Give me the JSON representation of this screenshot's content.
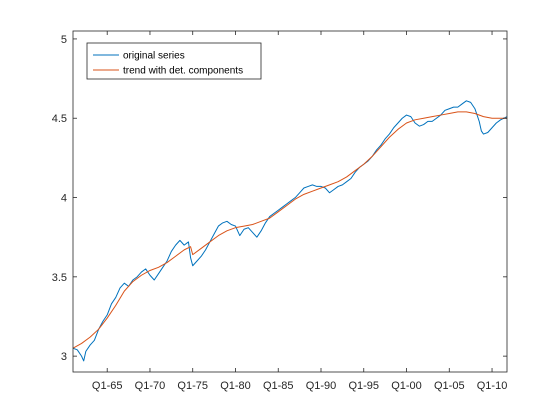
{
  "chart_data": {
    "type": "line",
    "title": "",
    "xlabel": "",
    "ylabel": "",
    "xlim": [
      1961.0,
      2011.75
    ],
    "ylim": [
      2.9,
      5.05
    ],
    "x_ticks": [
      {
        "value": 1965.0,
        "label": "Q1-65"
      },
      {
        "value": 1970.0,
        "label": "Q1-70"
      },
      {
        "value": 1975.0,
        "label": "Q1-75"
      },
      {
        "value": 1980.0,
        "label": "Q1-80"
      },
      {
        "value": 1985.0,
        "label": "Q1-85"
      },
      {
        "value": 1990.0,
        "label": "Q1-90"
      },
      {
        "value": 1995.0,
        "label": "Q1-95"
      },
      {
        "value": 2000.0,
        "label": "Q1-00"
      },
      {
        "value": 2005.0,
        "label": "Q1-05"
      },
      {
        "value": 2010.0,
        "label": "Q1-10"
      }
    ],
    "y_ticks": [
      {
        "value": 3,
        "label": "3"
      },
      {
        "value": 3.5,
        "label": "3.5"
      },
      {
        "value": 4,
        "label": "4"
      },
      {
        "value": 4.5,
        "label": "4.5"
      },
      {
        "value": 5,
        "label": "5"
      }
    ],
    "grid": false,
    "legend_position": "top-left",
    "series": [
      {
        "name": "original series",
        "color": "#0072BD",
        "points": [
          [
            1961.0,
            3.05
          ],
          [
            1961.5,
            3.04
          ],
          [
            1962.0,
            3.0
          ],
          [
            1962.25,
            2.97
          ],
          [
            1962.5,
            3.03
          ],
          [
            1963.0,
            3.07
          ],
          [
            1963.5,
            3.1
          ],
          [
            1964.0,
            3.17
          ],
          [
            1964.5,
            3.22
          ],
          [
            1965.0,
            3.26
          ],
          [
            1965.5,
            3.33
          ],
          [
            1966.0,
            3.37
          ],
          [
            1966.5,
            3.43
          ],
          [
            1967.0,
            3.46
          ],
          [
            1967.5,
            3.44
          ],
          [
            1968.0,
            3.48
          ],
          [
            1968.5,
            3.5
          ],
          [
            1969.0,
            3.53
          ],
          [
            1969.5,
            3.55
          ],
          [
            1970.0,
            3.51
          ],
          [
            1970.5,
            3.48
          ],
          [
            1971.0,
            3.52
          ],
          [
            1971.5,
            3.56
          ],
          [
            1972.0,
            3.6
          ],
          [
            1972.5,
            3.66
          ],
          [
            1973.0,
            3.7
          ],
          [
            1973.5,
            3.73
          ],
          [
            1974.0,
            3.7
          ],
          [
            1974.5,
            3.72
          ],
          [
            1974.75,
            3.62
          ],
          [
            1975.0,
            3.57
          ],
          [
            1975.5,
            3.6
          ],
          [
            1976.0,
            3.63
          ],
          [
            1976.5,
            3.67
          ],
          [
            1977.0,
            3.72
          ],
          [
            1977.5,
            3.77
          ],
          [
            1978.0,
            3.82
          ],
          [
            1978.5,
            3.84
          ],
          [
            1979.0,
            3.85
          ],
          [
            1979.5,
            3.83
          ],
          [
            1980.0,
            3.82
          ],
          [
            1980.5,
            3.76
          ],
          [
            1981.0,
            3.8
          ],
          [
            1981.5,
            3.81
          ],
          [
            1982.0,
            3.78
          ],
          [
            1982.5,
            3.75
          ],
          [
            1983.0,
            3.79
          ],
          [
            1983.5,
            3.84
          ],
          [
            1984.0,
            3.88
          ],
          [
            1984.5,
            3.9
          ],
          [
            1985.0,
            3.92
          ],
          [
            1985.5,
            3.94
          ],
          [
            1986.0,
            3.96
          ],
          [
            1986.5,
            3.98
          ],
          [
            1987.0,
            4.0
          ],
          [
            1987.5,
            4.03
          ],
          [
            1988.0,
            4.06
          ],
          [
            1988.5,
            4.07
          ],
          [
            1989.0,
            4.08
          ],
          [
            1989.5,
            4.07
          ],
          [
            1990.0,
            4.07
          ],
          [
            1990.5,
            4.06
          ],
          [
            1991.0,
            4.03
          ],
          [
            1991.5,
            4.05
          ],
          [
            1992.0,
            4.07
          ],
          [
            1992.5,
            4.08
          ],
          [
            1993.0,
            4.1
          ],
          [
            1993.5,
            4.12
          ],
          [
            1994.0,
            4.16
          ],
          [
            1994.5,
            4.19
          ],
          [
            1995.0,
            4.21
          ],
          [
            1995.5,
            4.23
          ],
          [
            1996.0,
            4.26
          ],
          [
            1996.5,
            4.3
          ],
          [
            1997.0,
            4.33
          ],
          [
            1997.5,
            4.37
          ],
          [
            1998.0,
            4.4
          ],
          [
            1998.5,
            4.44
          ],
          [
            1999.0,
            4.47
          ],
          [
            1999.5,
            4.5
          ],
          [
            2000.0,
            4.52
          ],
          [
            2000.5,
            4.51
          ],
          [
            2001.0,
            4.47
          ],
          [
            2001.5,
            4.45
          ],
          [
            2002.0,
            4.46
          ],
          [
            2002.5,
            4.48
          ],
          [
            2003.0,
            4.48
          ],
          [
            2003.5,
            4.5
          ],
          [
            2004.0,
            4.52
          ],
          [
            2004.5,
            4.55
          ],
          [
            2005.0,
            4.56
          ],
          [
            2005.5,
            4.57
          ],
          [
            2006.0,
            4.57
          ],
          [
            2006.5,
            4.59
          ],
          [
            2007.0,
            4.61
          ],
          [
            2007.5,
            4.6
          ],
          [
            2008.0,
            4.56
          ],
          [
            2008.5,
            4.48
          ],
          [
            2008.75,
            4.42
          ],
          [
            2009.0,
            4.4
          ],
          [
            2009.5,
            4.41
          ],
          [
            2010.0,
            4.44
          ],
          [
            2010.5,
            4.47
          ],
          [
            2011.0,
            4.49
          ],
          [
            2011.75,
            4.51
          ]
        ]
      },
      {
        "name": "trend with det. components",
        "color": "#D95319",
        "points": [
          [
            1961.0,
            3.05
          ],
          [
            1962.0,
            3.08
          ],
          [
            1963.0,
            3.12
          ],
          [
            1964.0,
            3.17
          ],
          [
            1965.0,
            3.24
          ],
          [
            1966.0,
            3.32
          ],
          [
            1967.0,
            3.41
          ],
          [
            1968.0,
            3.47
          ],
          [
            1969.0,
            3.51
          ],
          [
            1970.0,
            3.54
          ],
          [
            1971.0,
            3.56
          ],
          [
            1972.0,
            3.59
          ],
          [
            1973.0,
            3.63
          ],
          [
            1974.0,
            3.67
          ],
          [
            1974.75,
            3.69
          ],
          [
            1975.0,
            3.64
          ],
          [
            1976.0,
            3.68
          ],
          [
            1977.0,
            3.72
          ],
          [
            1978.0,
            3.76
          ],
          [
            1979.0,
            3.79
          ],
          [
            1980.0,
            3.81
          ],
          [
            1981.0,
            3.82
          ],
          [
            1982.0,
            3.83
          ],
          [
            1983.0,
            3.85
          ],
          [
            1984.0,
            3.87
          ],
          [
            1985.0,
            3.91
          ],
          [
            1986.0,
            3.95
          ],
          [
            1987.0,
            3.99
          ],
          [
            1988.0,
            4.02
          ],
          [
            1989.0,
            4.04
          ],
          [
            1990.0,
            4.06
          ],
          [
            1991.0,
            4.08
          ],
          [
            1992.0,
            4.1
          ],
          [
            1993.0,
            4.13
          ],
          [
            1994.0,
            4.17
          ],
          [
            1995.0,
            4.21
          ],
          [
            1996.0,
            4.26
          ],
          [
            1997.0,
            4.32
          ],
          [
            1998.0,
            4.38
          ],
          [
            1999.0,
            4.43
          ],
          [
            2000.0,
            4.47
          ],
          [
            2001.0,
            4.49
          ],
          [
            2002.0,
            4.5
          ],
          [
            2003.0,
            4.51
          ],
          [
            2004.0,
            4.52
          ],
          [
            2005.0,
            4.53
          ],
          [
            2006.0,
            4.54
          ],
          [
            2007.0,
            4.54
          ],
          [
            2008.0,
            4.53
          ],
          [
            2009.0,
            4.51
          ],
          [
            2010.0,
            4.5
          ],
          [
            2011.0,
            4.5
          ],
          [
            2011.75,
            4.5
          ]
        ]
      }
    ]
  }
}
